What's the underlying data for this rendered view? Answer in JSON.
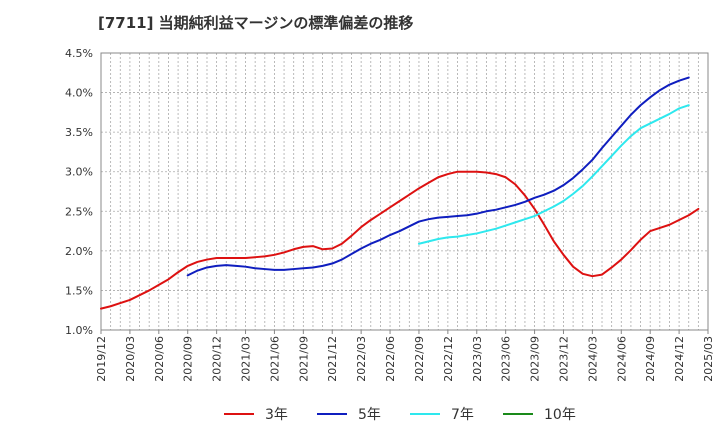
{
  "chart_data": {
    "type": "line",
    "title": "[7711]  当期純利益マージンの標準偏差の推移",
    "xlabel": "",
    "ylabel": "",
    "x_ticks": [
      "2019/12",
      "2020/03",
      "2020/06",
      "2020/09",
      "2020/12",
      "2021/03",
      "2021/06",
      "2021/09",
      "2021/12",
      "2022/03",
      "2022/06",
      "2022/09",
      "2022/12",
      "2023/03",
      "2023/06",
      "2023/09",
      "2023/12",
      "2024/03",
      "2024/06",
      "2024/09",
      "2024/12",
      "2025/03"
    ],
    "y_ticks": [
      "1.0%",
      "1.5%",
      "2.0%",
      "2.5%",
      "3.0%",
      "3.5%",
      "4.0%",
      "4.5%"
    ],
    "ylim": [
      1.0,
      4.5
    ],
    "y_unit": "%",
    "grid": true,
    "legend_position": "bottom",
    "colors": {
      "grid": "#aaaaaa",
      "axis": "#888888"
    },
    "series": [
      {
        "name": "3年",
        "color": "#dd1111",
        "points": [
          [
            "2019/12",
            1.27
          ],
          [
            "2020/01",
            1.3
          ],
          [
            "2020/02",
            1.34
          ],
          [
            "2020/03",
            1.38
          ],
          [
            "2020/04",
            1.44
          ],
          [
            "2020/05",
            1.5
          ],
          [
            "2020/06",
            1.57
          ],
          [
            "2020/07",
            1.64
          ],
          [
            "2020/08",
            1.73
          ],
          [
            "2020/09",
            1.81
          ],
          [
            "2020/10",
            1.86
          ],
          [
            "2020/11",
            1.89
          ],
          [
            "2020/12",
            1.91
          ],
          [
            "2021/01",
            1.91
          ],
          [
            "2021/02",
            1.91
          ],
          [
            "2021/03",
            1.91
          ],
          [
            "2021/04",
            1.92
          ],
          [
            "2021/05",
            1.93
          ],
          [
            "2021/06",
            1.95
          ],
          [
            "2021/07",
            1.98
          ],
          [
            "2021/08",
            2.02
          ],
          [
            "2021/09",
            2.05
          ],
          [
            "2021/10",
            2.06
          ],
          [
            "2021/11",
            2.02
          ],
          [
            "2021/12",
            2.03
          ],
          [
            "2022/01",
            2.09
          ],
          [
            "2022/02",
            2.19
          ],
          [
            "2022/03",
            2.3
          ],
          [
            "2022/04",
            2.39
          ],
          [
            "2022/05",
            2.47
          ],
          [
            "2022/06",
            2.55
          ],
          [
            "2022/07",
            2.63
          ],
          [
            "2022/08",
            2.71
          ],
          [
            "2022/09",
            2.79
          ],
          [
            "2022/10",
            2.86
          ],
          [
            "2022/11",
            2.93
          ],
          [
            "2022/12",
            2.97
          ],
          [
            "2023/01",
            3.0
          ],
          [
            "2023/02",
            3.0
          ],
          [
            "2023/03",
            3.0
          ],
          [
            "2023/04",
            2.99
          ],
          [
            "2023/05",
            2.97
          ],
          [
            "2023/06",
            2.93
          ],
          [
            "2023/07",
            2.84
          ],
          [
            "2023/08",
            2.7
          ],
          [
            "2023/09",
            2.53
          ],
          [
            "2023/10",
            2.33
          ],
          [
            "2023/11",
            2.12
          ],
          [
            "2023/12",
            1.95
          ],
          [
            "2024/01",
            1.8
          ],
          [
            "2024/02",
            1.71
          ],
          [
            "2024/03",
            1.68
          ],
          [
            "2024/04",
            1.7
          ],
          [
            "2024/05",
            1.79
          ],
          [
            "2024/06",
            1.89
          ],
          [
            "2024/07",
            2.01
          ],
          [
            "2024/08",
            2.14
          ],
          [
            "2024/09",
            2.25
          ],
          [
            "2024/10",
            2.29
          ],
          [
            "2024/11",
            2.33
          ],
          [
            "2024/12",
            2.39
          ],
          [
            "2025/01",
            2.45
          ],
          [
            "2025/02",
            2.53
          ]
        ]
      },
      {
        "name": "5年",
        "color": "#0f1ebf",
        "points": [
          [
            "2020/09",
            1.69
          ],
          [
            "2020/10",
            1.75
          ],
          [
            "2020/11",
            1.79
          ],
          [
            "2020/12",
            1.81
          ],
          [
            "2021/01",
            1.82
          ],
          [
            "2021/02",
            1.81
          ],
          [
            "2021/03",
            1.8
          ],
          [
            "2021/04",
            1.78
          ],
          [
            "2021/05",
            1.77
          ],
          [
            "2021/06",
            1.76
          ],
          [
            "2021/07",
            1.76
          ],
          [
            "2021/08",
            1.77
          ],
          [
            "2021/09",
            1.78
          ],
          [
            "2021/10",
            1.79
          ],
          [
            "2021/11",
            1.81
          ],
          [
            "2021/12",
            1.84
          ],
          [
            "2022/01",
            1.89
          ],
          [
            "2022/02",
            1.96
          ],
          [
            "2022/03",
            2.03
          ],
          [
            "2022/04",
            2.09
          ],
          [
            "2022/05",
            2.14
          ],
          [
            "2022/06",
            2.2
          ],
          [
            "2022/07",
            2.25
          ],
          [
            "2022/08",
            2.31
          ],
          [
            "2022/09",
            2.37
          ],
          [
            "2022/10",
            2.4
          ],
          [
            "2022/11",
            2.42
          ],
          [
            "2022/12",
            2.43
          ],
          [
            "2023/01",
            2.44
          ],
          [
            "2023/02",
            2.45
          ],
          [
            "2023/03",
            2.47
          ],
          [
            "2023/04",
            2.5
          ],
          [
            "2023/05",
            2.52
          ],
          [
            "2023/06",
            2.55
          ],
          [
            "2023/07",
            2.58
          ],
          [
            "2023/08",
            2.62
          ],
          [
            "2023/09",
            2.67
          ],
          [
            "2023/10",
            2.71
          ],
          [
            "2023/11",
            2.76
          ],
          [
            "2023/12",
            2.83
          ],
          [
            "2024/01",
            2.92
          ],
          [
            "2024/02",
            3.03
          ],
          [
            "2024/03",
            3.15
          ],
          [
            "2024/04",
            3.3
          ],
          [
            "2024/05",
            3.44
          ],
          [
            "2024/06",
            3.58
          ],
          [
            "2024/07",
            3.72
          ],
          [
            "2024/08",
            3.84
          ],
          [
            "2024/09",
            3.94
          ],
          [
            "2024/10",
            4.03
          ],
          [
            "2024/11",
            4.1
          ],
          [
            "2024/12",
            4.15
          ],
          [
            "2025/01",
            4.19
          ]
        ]
      },
      {
        "name": "7年",
        "color": "#2ee8ee",
        "points": [
          [
            "2022/09",
            2.09
          ],
          [
            "2022/10",
            2.12
          ],
          [
            "2022/11",
            2.15
          ],
          [
            "2022/12",
            2.17
          ],
          [
            "2023/01",
            2.18
          ],
          [
            "2023/02",
            2.2
          ],
          [
            "2023/03",
            2.22
          ],
          [
            "2023/04",
            2.25
          ],
          [
            "2023/05",
            2.28
          ],
          [
            "2023/06",
            2.32
          ],
          [
            "2023/07",
            2.36
          ],
          [
            "2023/08",
            2.4
          ],
          [
            "2023/09",
            2.44
          ],
          [
            "2023/10",
            2.5
          ],
          [
            "2023/11",
            2.56
          ],
          [
            "2023/12",
            2.63
          ],
          [
            "2024/01",
            2.72
          ],
          [
            "2024/02",
            2.82
          ],
          [
            "2024/03",
            2.94
          ],
          [
            "2024/04",
            3.07
          ],
          [
            "2024/05",
            3.2
          ],
          [
            "2024/06",
            3.33
          ],
          [
            "2024/07",
            3.45
          ],
          [
            "2024/08",
            3.55
          ],
          [
            "2024/09",
            3.61
          ],
          [
            "2024/10",
            3.67
          ],
          [
            "2024/11",
            3.73
          ],
          [
            "2024/12",
            3.8
          ],
          [
            "2025/01",
            3.84
          ]
        ]
      },
      {
        "name": "10年",
        "color": "#1a8a1a",
        "points": []
      }
    ]
  }
}
